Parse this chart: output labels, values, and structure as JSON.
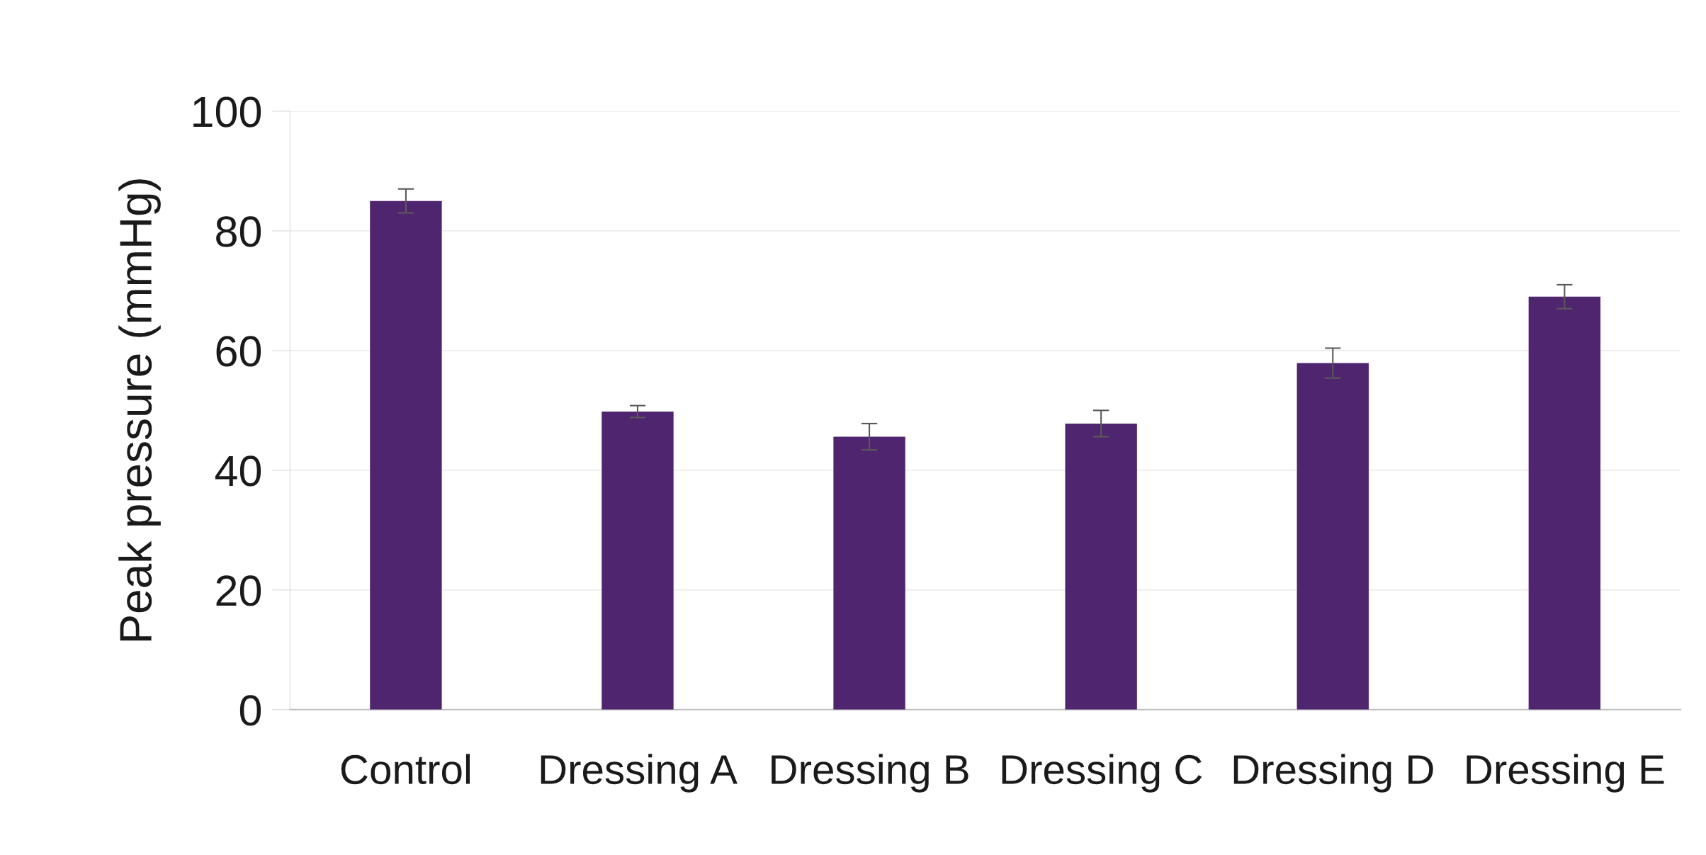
{
  "chart_data": {
    "type": "bar",
    "ylabel": "Peak pressure (mmHg)",
    "categories": [
      "Control",
      "Dressing A",
      "Dressing B",
      "Dressing C",
      "Dressing D",
      "Dressing E"
    ],
    "values": [
      85.0,
      49.8,
      45.6,
      47.8,
      57.9,
      69.0
    ],
    "errors": [
      2.0,
      1.0,
      2.2,
      2.2,
      2.5,
      2.0
    ],
    "color": "#502570",
    "ylim": [
      0,
      100
    ],
    "yticks": [
      0,
      20,
      40,
      60,
      80,
      100
    ],
    "grid": "y",
    "legend": false
  }
}
